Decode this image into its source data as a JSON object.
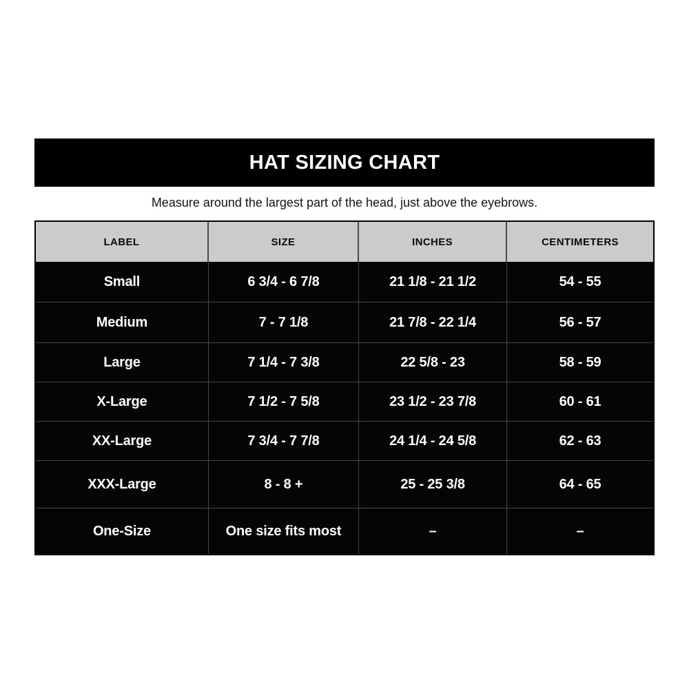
{
  "title": "HAT SIZING CHART",
  "subtitle": "Measure around the largest part of the head, just above the eyebrows.",
  "colors": {
    "title_bar_bg": "#000000",
    "title_text": "#ffffff",
    "header_row_bg": "#cbcbcb",
    "header_text": "#0a0a0a",
    "row_bg": "#050505",
    "row_text": "#ffffff",
    "grid_line": "#464646",
    "page_bg": "#ffffff"
  },
  "chart_data": {
    "type": "table",
    "title": "HAT SIZING CHART",
    "subtitle": "Measure around the largest part of the head, just above the eyebrows.",
    "columns": [
      "LABEL",
      "SIZE",
      "INCHES",
      "CENTIMETERS"
    ],
    "rows": [
      [
        "Small",
        "6 3/4 - 6 7/8",
        "21 1/8 - 21 1/2",
        "54 - 55"
      ],
      [
        "Medium",
        "7 - 7 1/8",
        "21 7/8 - 22 1/4",
        "56 - 57"
      ],
      [
        "Large",
        "7 1/4 - 7 3/8",
        "22 5/8 - 23",
        "58 - 59"
      ],
      [
        "X-Large",
        "7 1/2 - 7 5/8",
        "23 1/2 - 23 7/8",
        "60 - 61"
      ],
      [
        "XX-Large",
        "7 3/4 - 7 7/8",
        "24 1/4 - 24 5/8",
        "62 - 63"
      ],
      [
        "XXX-Large",
        "8 - 8 +",
        "25 - 25 3/8",
        "64 - 65"
      ],
      [
        "One-Size",
        "One size fits most",
        "–",
        "–"
      ]
    ]
  }
}
